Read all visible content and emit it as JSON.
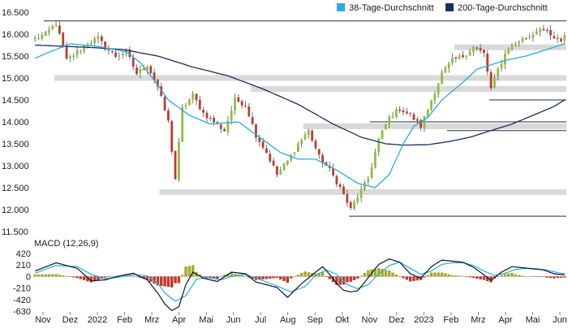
{
  "chart_data": [
    {
      "type": "candlestick",
      "legend": [
        {
          "label": "38-Tage-Durchschnitt",
          "color": "#29abe2"
        },
        {
          "label": "200-Tage-Durchschnitt",
          "color": "#16305f"
        }
      ],
      "y_ticks": [
        "11.500",
        "12.000",
        "12.500",
        "13.000",
        "13.500",
        "14.000",
        "14.500",
        "15.000",
        "15.500",
        "16.000",
        "16.500"
      ],
      "ylim": [
        11500,
        16500
      ],
      "x_labels": [
        "Nov",
        "Dez",
        "2022",
        "Feb",
        "Mrz",
        "Apr",
        "Mai",
        "Jun",
        "Jul",
        "Aug",
        "Sep",
        "Okt",
        "Nov",
        "Dez",
        "2023",
        "Feb",
        "Mrz",
        "Apr",
        "Mai",
        "Jun"
      ],
      "price_anchors": [
        [
          0,
          15900
        ],
        [
          3,
          16000
        ],
        [
          6,
          16250
        ],
        [
          9,
          15400
        ],
        [
          12,
          15600
        ],
        [
          15,
          15800
        ],
        [
          18,
          15900
        ],
        [
          20,
          15700
        ],
        [
          23,
          15500
        ],
        [
          26,
          15600
        ],
        [
          29,
          15100
        ],
        [
          32,
          15300
        ],
        [
          35,
          14800
        ],
        [
          38,
          14000
        ],
        [
          40,
          12700
        ],
        [
          42,
          14300
        ],
        [
          45,
          14600
        ],
        [
          48,
          14200
        ],
        [
          51,
          14000
        ],
        [
          54,
          13800
        ],
        [
          57,
          14500
        ],
        [
          60,
          14400
        ],
        [
          63,
          13700
        ],
        [
          66,
          13300
        ],
        [
          69,
          12800
        ],
        [
          72,
          13100
        ],
        [
          75,
          13500
        ],
        [
          78,
          13800
        ],
        [
          81,
          13200
        ],
        [
          84,
          12900
        ],
        [
          87,
          12500
        ],
        [
          90,
          12000
        ],
        [
          92,
          12300
        ],
        [
          95,
          12700
        ],
        [
          98,
          13600
        ],
        [
          101,
          14100
        ],
        [
          104,
          14300
        ],
        [
          107,
          14150
        ],
        [
          110,
          13900
        ],
        [
          113,
          14500
        ],
        [
          116,
          15100
        ],
        [
          119,
          15400
        ],
        [
          122,
          15500
        ],
        [
          125,
          15700
        ],
        [
          128,
          15550
        ],
        [
          130,
          14750
        ],
        [
          132,
          15200
        ],
        [
          135,
          15700
        ],
        [
          138,
          15850
        ],
        [
          141,
          15950
        ],
        [
          144,
          16150
        ],
        [
          147,
          15950
        ],
        [
          150,
          15800
        ],
        [
          151,
          16000
        ]
      ],
      "ma38_anchors": [
        [
          0,
          15450
        ],
        [
          5,
          15620
        ],
        [
          10,
          15780
        ],
        [
          18,
          15720
        ],
        [
          26,
          15600
        ],
        [
          30,
          15350
        ],
        [
          34,
          14950
        ],
        [
          38,
          14500
        ],
        [
          44,
          14150
        ],
        [
          50,
          13950
        ],
        [
          58,
          14000
        ],
        [
          64,
          13650
        ],
        [
          70,
          13300
        ],
        [
          75,
          13150
        ],
        [
          80,
          13150
        ],
        [
          86,
          12900
        ],
        [
          92,
          12600
        ],
        [
          97,
          12500
        ],
        [
          101,
          12800
        ],
        [
          105,
          13500
        ],
        [
          108,
          13900
        ],
        [
          112,
          14100
        ],
        [
          116,
          14500
        ],
        [
          122,
          14900
        ],
        [
          126,
          15200
        ],
        [
          130,
          15300
        ],
        [
          134,
          15400
        ],
        [
          140,
          15500
        ],
        [
          146,
          15650
        ],
        [
          151,
          15780
        ]
      ],
      "ma200_anchors": [
        [
          0,
          15750
        ],
        [
          15,
          15700
        ],
        [
          25,
          15650
        ],
        [
          35,
          15500
        ],
        [
          45,
          15250
        ],
        [
          55,
          15050
        ],
        [
          65,
          14750
        ],
        [
          75,
          14400
        ],
        [
          85,
          13950
        ],
        [
          93,
          13650
        ],
        [
          100,
          13500
        ],
        [
          105,
          13470
        ],
        [
          112,
          13480
        ],
        [
          118,
          13550
        ],
        [
          124,
          13650
        ],
        [
          130,
          13800
        ],
        [
          136,
          13950
        ],
        [
          142,
          14150
        ],
        [
          148,
          14350
        ],
        [
          151,
          14500
        ]
      ],
      "support_lines": [
        {
          "level": 16300,
          "from": 3,
          "to": 151
        },
        {
          "level": 14000,
          "from": 96,
          "to": 151
        },
        {
          "level": 13800,
          "from": 118,
          "to": 151
        },
        {
          "level": 14500,
          "from": 130,
          "to": 151
        },
        {
          "level": 11850,
          "from": 90,
          "to": 151
        }
      ],
      "support_zones": [
        {
          "level": 15000,
          "from": 6,
          "to": 151
        },
        {
          "level": 15700,
          "from": 120,
          "to": 151
        },
        {
          "level": 12400,
          "from": 36,
          "to": 151
        },
        {
          "level": 13900,
          "from": 77,
          "to": 151
        },
        {
          "level": 14750,
          "from": 62,
          "to": 151
        }
      ],
      "n_days": 152
    },
    {
      "type": "macd",
      "title": "MACD (12,26,9)",
      "y_ticks": [
        "420",
        "210",
        "0",
        "-210",
        "-420",
        "-630"
      ],
      "ylim": [
        -630,
        420
      ],
      "macd_anchors": [
        [
          0,
          100
        ],
        [
          6,
          250
        ],
        [
          12,
          150
        ],
        [
          16,
          -80
        ],
        [
          20,
          -60
        ],
        [
          24,
          10
        ],
        [
          28,
          60
        ],
        [
          32,
          -60
        ],
        [
          35,
          -300
        ],
        [
          37,
          -500
        ],
        [
          39,
          -620
        ],
        [
          41,
          -550
        ],
        [
          43,
          -150
        ],
        [
          45,
          80
        ],
        [
          48,
          -30
        ],
        [
          52,
          -90
        ],
        [
          56,
          80
        ],
        [
          60,
          50
        ],
        [
          63,
          -100
        ],
        [
          66,
          -150
        ],
        [
          69,
          -200
        ],
        [
          72,
          -380
        ],
        [
          76,
          -130
        ],
        [
          80,
          80
        ],
        [
          82,
          180
        ],
        [
          84,
          40
        ],
        [
          86,
          -130
        ],
        [
          88,
          -250
        ],
        [
          90,
          -280
        ],
        [
          92,
          -260
        ],
        [
          95,
          -20
        ],
        [
          98,
          220
        ],
        [
          101,
          320
        ],
        [
          104,
          260
        ],
        [
          107,
          50
        ],
        [
          110,
          -30
        ],
        [
          113,
          180
        ],
        [
          116,
          300
        ],
        [
          119,
          280
        ],
        [
          122,
          260
        ],
        [
          125,
          170
        ],
        [
          128,
          30
        ],
        [
          130,
          -70
        ],
        [
          133,
          80
        ],
        [
          136,
          180
        ],
        [
          139,
          160
        ],
        [
          142,
          140
        ],
        [
          145,
          120
        ],
        [
          148,
          50
        ],
        [
          151,
          30
        ]
      ],
      "signal_anchors": [
        [
          0,
          60
        ],
        [
          6,
          200
        ],
        [
          12,
          180
        ],
        [
          16,
          40
        ],
        [
          20,
          -40
        ],
        [
          24,
          -10
        ],
        [
          28,
          40
        ],
        [
          32,
          10
        ],
        [
          35,
          -120
        ],
        [
          37,
          -300
        ],
        [
          40,
          -450
        ],
        [
          43,
          -350
        ],
        [
          46,
          -50
        ],
        [
          49,
          -10
        ],
        [
          53,
          -60
        ],
        [
          57,
          20
        ],
        [
          60,
          40
        ],
        [
          63,
          -30
        ],
        [
          66,
          -100
        ],
        [
          70,
          -200
        ],
        [
          73,
          -280
        ],
        [
          77,
          -180
        ],
        [
          80,
          20
        ],
        [
          83,
          120
        ],
        [
          86,
          40
        ],
        [
          89,
          -150
        ],
        [
          92,
          -220
        ],
        [
          95,
          -150
        ],
        [
          98,
          50
        ],
        [
          101,
          200
        ],
        [
          104,
          260
        ],
        [
          107,
          150
        ],
        [
          110,
          40
        ],
        [
          113,
          100
        ],
        [
          116,
          220
        ],
        [
          119,
          250
        ],
        [
          122,
          250
        ],
        [
          125,
          200
        ],
        [
          128,
          100
        ],
        [
          131,
          20
        ],
        [
          134,
          60
        ],
        [
          137,
          130
        ],
        [
          140,
          150
        ],
        [
          143,
          140
        ],
        [
          146,
          120
        ],
        [
          149,
          70
        ],
        [
          151,
          50
        ]
      ],
      "hist_pos_color": "#a6a82a",
      "hist_neg_color": "#c0392b"
    }
  ]
}
